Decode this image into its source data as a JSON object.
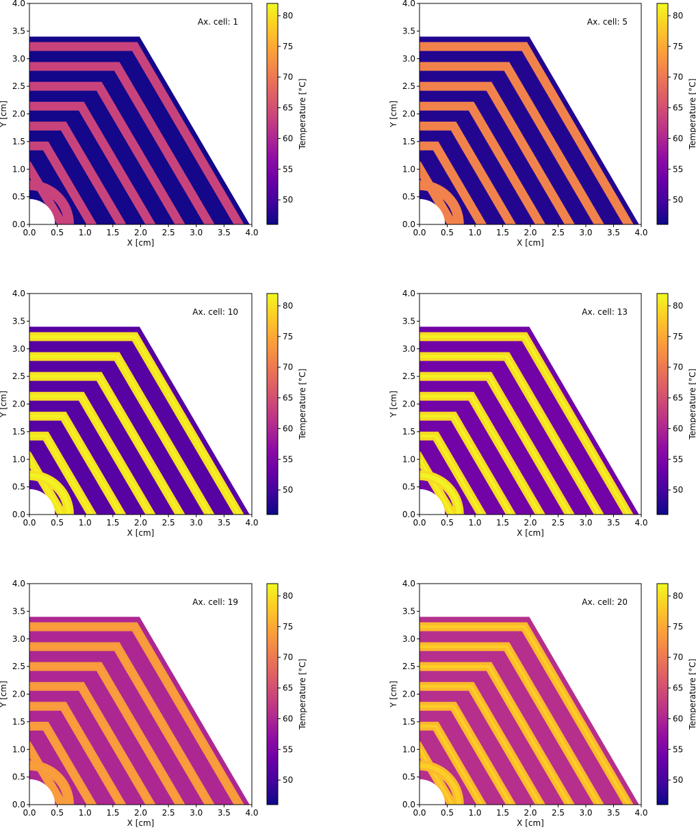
{
  "chart_data": [
    {
      "type": "heatmap",
      "annotation": "Ax. cell: 1",
      "xlabel": "X [cm]",
      "ylabel": "Y [cm]",
      "xlim": [
        0,
        4
      ],
      "ylim": [
        0,
        4
      ],
      "x_ticks": [
        "0.0",
        "0.5",
        "1.0",
        "1.5",
        "2.0",
        "2.5",
        "3.0",
        "3.5",
        "4.0"
      ],
      "y_ticks": [
        "0.0",
        "0.5",
        "1.0",
        "1.5",
        "2.0",
        "2.5",
        "3.0",
        "3.5",
        "4.0"
      ],
      "colorbar": {
        "label": "Temperature [°C]",
        "range": [
          46,
          82
        ],
        "ticks": [
          "50",
          "55",
          "60",
          "65",
          "70",
          "75",
          "80"
        ]
      },
      "region_temperatures": {
        "base": 46.5,
        "ring_bands": 63.5,
        "band_highlight": 63.5
      }
    },
    {
      "type": "heatmap",
      "annotation": "Ax. cell: 5",
      "xlabel": "X [cm]",
      "ylabel": "Y [cm]",
      "xlim": [
        0,
        4
      ],
      "ylim": [
        0,
        4
      ],
      "x_ticks": [
        "0.0",
        "0.5",
        "1.0",
        "1.5",
        "2.0",
        "2.5",
        "3.0",
        "3.5",
        "4.0"
      ],
      "y_ticks": [
        "0.0",
        "0.5",
        "1.0",
        "1.5",
        "2.0",
        "2.5",
        "3.0",
        "3.5",
        "4.0"
      ],
      "colorbar": {
        "label": "Temperature [°C]",
        "range": [
          46,
          82
        ],
        "ticks": [
          "50",
          "55",
          "60",
          "65",
          "70",
          "75",
          "80"
        ]
      },
      "region_temperatures": {
        "base": 47.5,
        "ring_bands": 71,
        "band_highlight": 71
      }
    },
    {
      "type": "heatmap",
      "annotation": "Ax. cell: 10",
      "xlabel": "X [cm]",
      "ylabel": "Y [cm]",
      "xlim": [
        0,
        4
      ],
      "ylim": [
        0,
        4
      ],
      "x_ticks": [
        "0.0",
        "0.5",
        "1.0",
        "1.5",
        "2.0",
        "2.5",
        "3.0",
        "3.5",
        "4.0"
      ],
      "y_ticks": [
        "0.0",
        "0.5",
        "1.0",
        "1.5",
        "2.0",
        "2.5",
        "3.0",
        "3.5",
        "4.0"
      ],
      "colorbar": {
        "label": "Temperature [°C]",
        "range": [
          46,
          82
        ],
        "ticks": [
          "50",
          "55",
          "60",
          "65",
          "70",
          "75",
          "80"
        ]
      },
      "region_temperatures": {
        "base": 51.5,
        "ring_bands": 80,
        "band_highlight": 81.5
      }
    },
    {
      "type": "heatmap",
      "annotation": "Ax. cell: 13",
      "xlabel": "X [cm]",
      "ylabel": "Y [cm]",
      "xlim": [
        0,
        4
      ],
      "ylim": [
        0,
        4
      ],
      "x_ticks": [
        "0.0",
        "0.5",
        "1.0",
        "1.5",
        "2.0",
        "2.5",
        "3.0",
        "3.5",
        "4.0"
      ],
      "y_ticks": [
        "0.0",
        "0.5",
        "1.0",
        "1.5",
        "2.0",
        "2.5",
        "3.0",
        "3.5",
        "4.0"
      ],
      "colorbar": {
        "label": "Temperature [°C]",
        "range": [
          46,
          82
        ],
        "ticks": [
          "50",
          "55",
          "60",
          "65",
          "70",
          "75",
          "80"
        ]
      },
      "region_temperatures": {
        "base": 54,
        "ring_bands": 79.5,
        "band_highlight": 81.5
      }
    },
    {
      "type": "heatmap",
      "annotation": "Ax. cell: 19",
      "xlabel": "X [cm]",
      "ylabel": "Y [cm]",
      "xlim": [
        0,
        4
      ],
      "ylim": [
        0,
        4
      ],
      "x_ticks": [
        "0.0",
        "0.5",
        "1.0",
        "1.5",
        "2.0",
        "2.5",
        "3.0",
        "3.5",
        "4.0"
      ],
      "y_ticks": [
        "0.0",
        "0.5",
        "1.0",
        "1.5",
        "2.0",
        "2.5",
        "3.0",
        "3.5",
        "4.0"
      ],
      "colorbar": {
        "label": "Temperature [°C]",
        "range": [
          46,
          82
        ],
        "ticks": [
          "50",
          "55",
          "60",
          "65",
          "70",
          "75",
          "80"
        ]
      },
      "region_temperatures": {
        "base": 60,
        "ring_bands": 73.5,
        "band_highlight": 74
      }
    },
    {
      "type": "heatmap",
      "annotation": "Ax. cell: 20",
      "xlabel": "X [cm]",
      "ylabel": "Y [cm]",
      "xlim": [
        0,
        4
      ],
      "ylim": [
        0,
        4
      ],
      "x_ticks": [
        "0.0",
        "0.5",
        "1.0",
        "1.5",
        "2.0",
        "2.5",
        "3.0",
        "3.5",
        "4.0"
      ],
      "y_ticks": [
        "0.0",
        "0.5",
        "1.0",
        "1.5",
        "2.0",
        "2.5",
        "3.0",
        "3.5",
        "4.0"
      ],
      "colorbar": {
        "label": "Temperature [°C]",
        "range": [
          46,
          82
        ],
        "ticks": [
          "50",
          "55",
          "60",
          "65",
          "70",
          "75",
          "80"
        ]
      },
      "region_temperatures": {
        "base": 61,
        "ring_bands": 76.5,
        "band_highlight": 78.5
      }
    }
  ]
}
